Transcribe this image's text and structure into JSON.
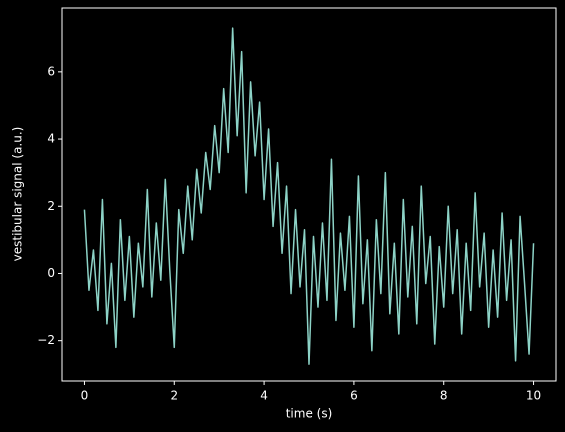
{
  "chart_data": {
    "type": "line",
    "x_label": "time (s)",
    "y_label": "vestibular signal (a.u.)",
    "color": "#8dd3c7",
    "xlim": [
      -0.5,
      10.5
    ],
    "ylim": [
      -3.2,
      7.9
    ],
    "xticks": [
      0,
      2,
      4,
      6,
      8,
      10
    ],
    "yticks": [
      {
        "value": -2,
        "label": "−2"
      },
      0,
      2,
      4,
      6
    ],
    "x": [
      0,
      0.1,
      0.2,
      0.3,
      0.4,
      0.5,
      0.6,
      0.7,
      0.8,
      0.9,
      1,
      1.1,
      1.2,
      1.3,
      1.4,
      1.5,
      1.6,
      1.7,
      1.8,
      1.9,
      2,
      2.1,
      2.2,
      2.3,
      2.4,
      2.5,
      2.6,
      2.7,
      2.8,
      2.9,
      3,
      3.1,
      3.2,
      3.3,
      3.4,
      3.5,
      3.6,
      3.7,
      3.8,
      3.9,
      4,
      4.1,
      4.2,
      4.3,
      4.4,
      4.5,
      4.6,
      4.7,
      4.8,
      4.9,
      5,
      5.1,
      5.2,
      5.3,
      5.4,
      5.5,
      5.6,
      5.7,
      5.8,
      5.9,
      6,
      6.1,
      6.2,
      6.3,
      6.4,
      6.5,
      6.6,
      6.7,
      6.8,
      6.9,
      7,
      7.1,
      7.2,
      7.3,
      7.4,
      7.5,
      7.6,
      7.7,
      7.8,
      7.9,
      8,
      8.1,
      8.2,
      8.3,
      8.4,
      8.5,
      8.6,
      8.7,
      8.8,
      8.9,
      9,
      9.1,
      9.2,
      9.3,
      9.4,
      9.5,
      9.6,
      9.7,
      9.8,
      9.9,
      10
    ],
    "values": [
      1.9,
      -0.5,
      0.7,
      -1.1,
      2.2,
      -1.5,
      0.3,
      -2.2,
      1.6,
      -0.8,
      1.1,
      -1.3,
      0.9,
      -0.4,
      2.5,
      -0.7,
      1.5,
      -0.2,
      2.8,
      0.1,
      -2.2,
      1.9,
      0.6,
      2.6,
      1.0,
      3.1,
      1.8,
      3.6,
      2.5,
      4.4,
      3.0,
      5.5,
      3.6,
      7.3,
      4.1,
      6.6,
      2.4,
      5.7,
      3.5,
      5.1,
      2.2,
      4.3,
      1.4,
      3.3,
      0.6,
      2.6,
      -0.6,
      1.9,
      -0.4,
      1.3,
      -2.7,
      1.1,
      -1.0,
      1.5,
      -0.8,
      3.4,
      -1.4,
      1.2,
      -0.5,
      1.7,
      -1.6,
      2.9,
      -0.9,
      1.0,
      -2.3,
      1.6,
      -0.6,
      3.0,
      -1.2,
      0.9,
      -1.8,
      2.2,
      -0.7,
      1.4,
      -1.5,
      2.6,
      -0.3,
      1.1,
      -2.1,
      0.8,
      -1.0,
      2.0,
      -0.6,
      1.3,
      -1.8,
      0.9,
      -1.1,
      2.4,
      -0.4,
      1.2,
      -1.6,
      0.7,
      -1.3,
      1.8,
      -0.8,
      1.0,
      -2.6,
      1.7,
      -0.3,
      -2.4,
      0.9
    ]
  }
}
